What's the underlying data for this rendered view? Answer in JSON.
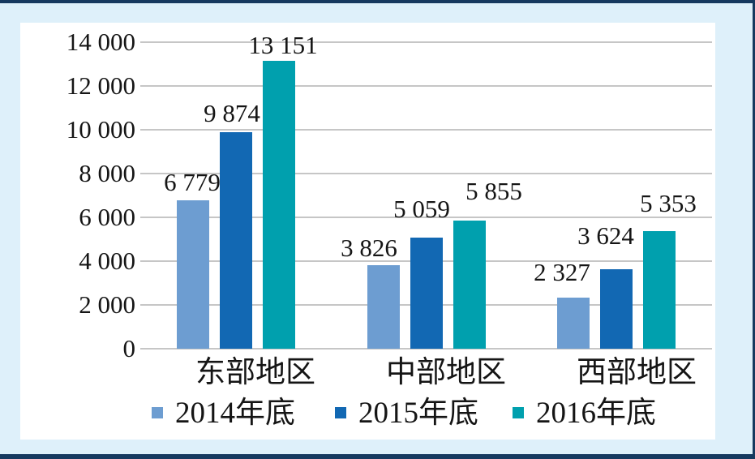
{
  "page": {
    "frame_color": "#16395f",
    "background_color": "#def0fa",
    "panel_color": "#ffffff",
    "gridline_color": "#c6c6c6",
    "text_color": "#151515"
  },
  "chart_data": {
    "type": "bar",
    "title": "",
    "categories": [
      "东部地区",
      "中部地区",
      "西部地区"
    ],
    "series": [
      {
        "name": "2014年底",
        "color": "#6d9dd1",
        "values": [
          6779,
          3826,
          2327
        ],
        "labels": [
          "6 779",
          "3 826",
          "2 327"
        ]
      },
      {
        "name": "2015年底",
        "color": "#1268b3",
        "values": [
          9874,
          5059,
          3624
        ],
        "labels": [
          "9 874",
          "5 059",
          "3 624"
        ]
      },
      {
        "name": "2016年底",
        "color": "#00a0ae",
        "values": [
          13151,
          5855,
          5353
        ],
        "labels": [
          "13 151",
          "5 855",
          "5 353"
        ]
      }
    ],
    "y_axis": {
      "min": 0,
      "max": 14000,
      "step": 2000,
      "tick_labels": [
        "0",
        "2 000",
        "4 000",
        "6 000",
        "8 000",
        "10 000",
        "12 000",
        "14 000"
      ]
    },
    "grid": true,
    "data_labels": true,
    "legend_position": "bottom",
    "xlabel": "",
    "ylabel": ""
  }
}
